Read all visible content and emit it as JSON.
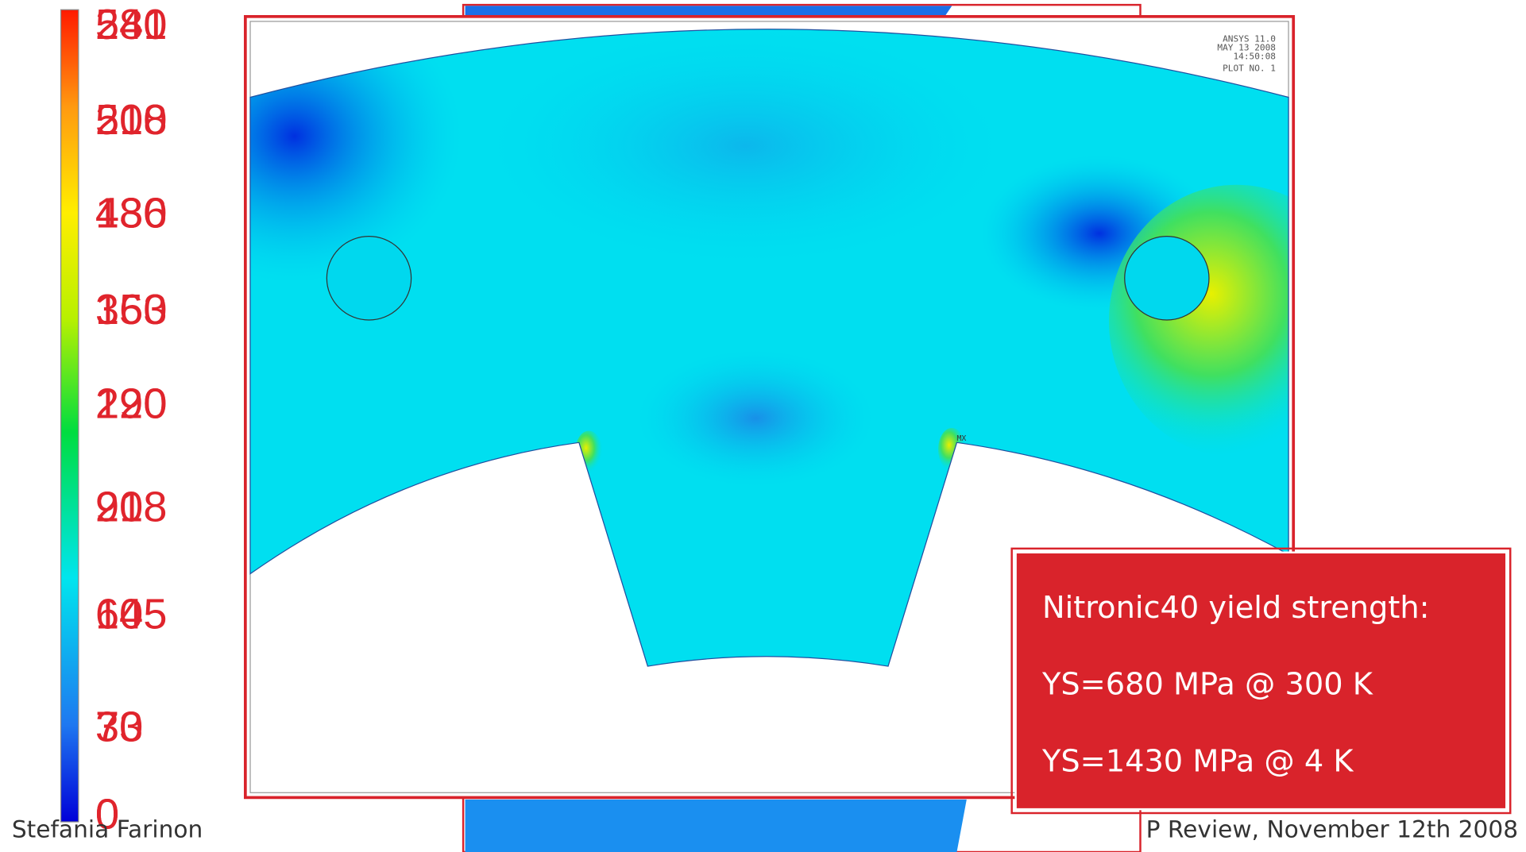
{
  "colorbar": {
    "labels_a": [
      "581",
      "508",
      "436",
      "363",
      "290",
      "218",
      "145",
      "73",
      "0"
    ],
    "labels_b": [
      "240",
      "210",
      "180",
      "150",
      "120",
      "90",
      "60",
      "30",
      "0"
    ]
  },
  "plot_header": [
    "ANSYS 11.0",
    "MAY 13 2008",
    "14:50:08",
    "PLOT NO.   1"
  ],
  "plot_marker": "MX",
  "info_box": [
    "Nitronic40  yield strength:",
    "YS=680 MPa @ 300 K",
    "YS=1430 MPa @ 4 K"
  ],
  "footer": {
    "author": "Stefania Farinon",
    "event": "P Review, November 12th 2008"
  }
}
